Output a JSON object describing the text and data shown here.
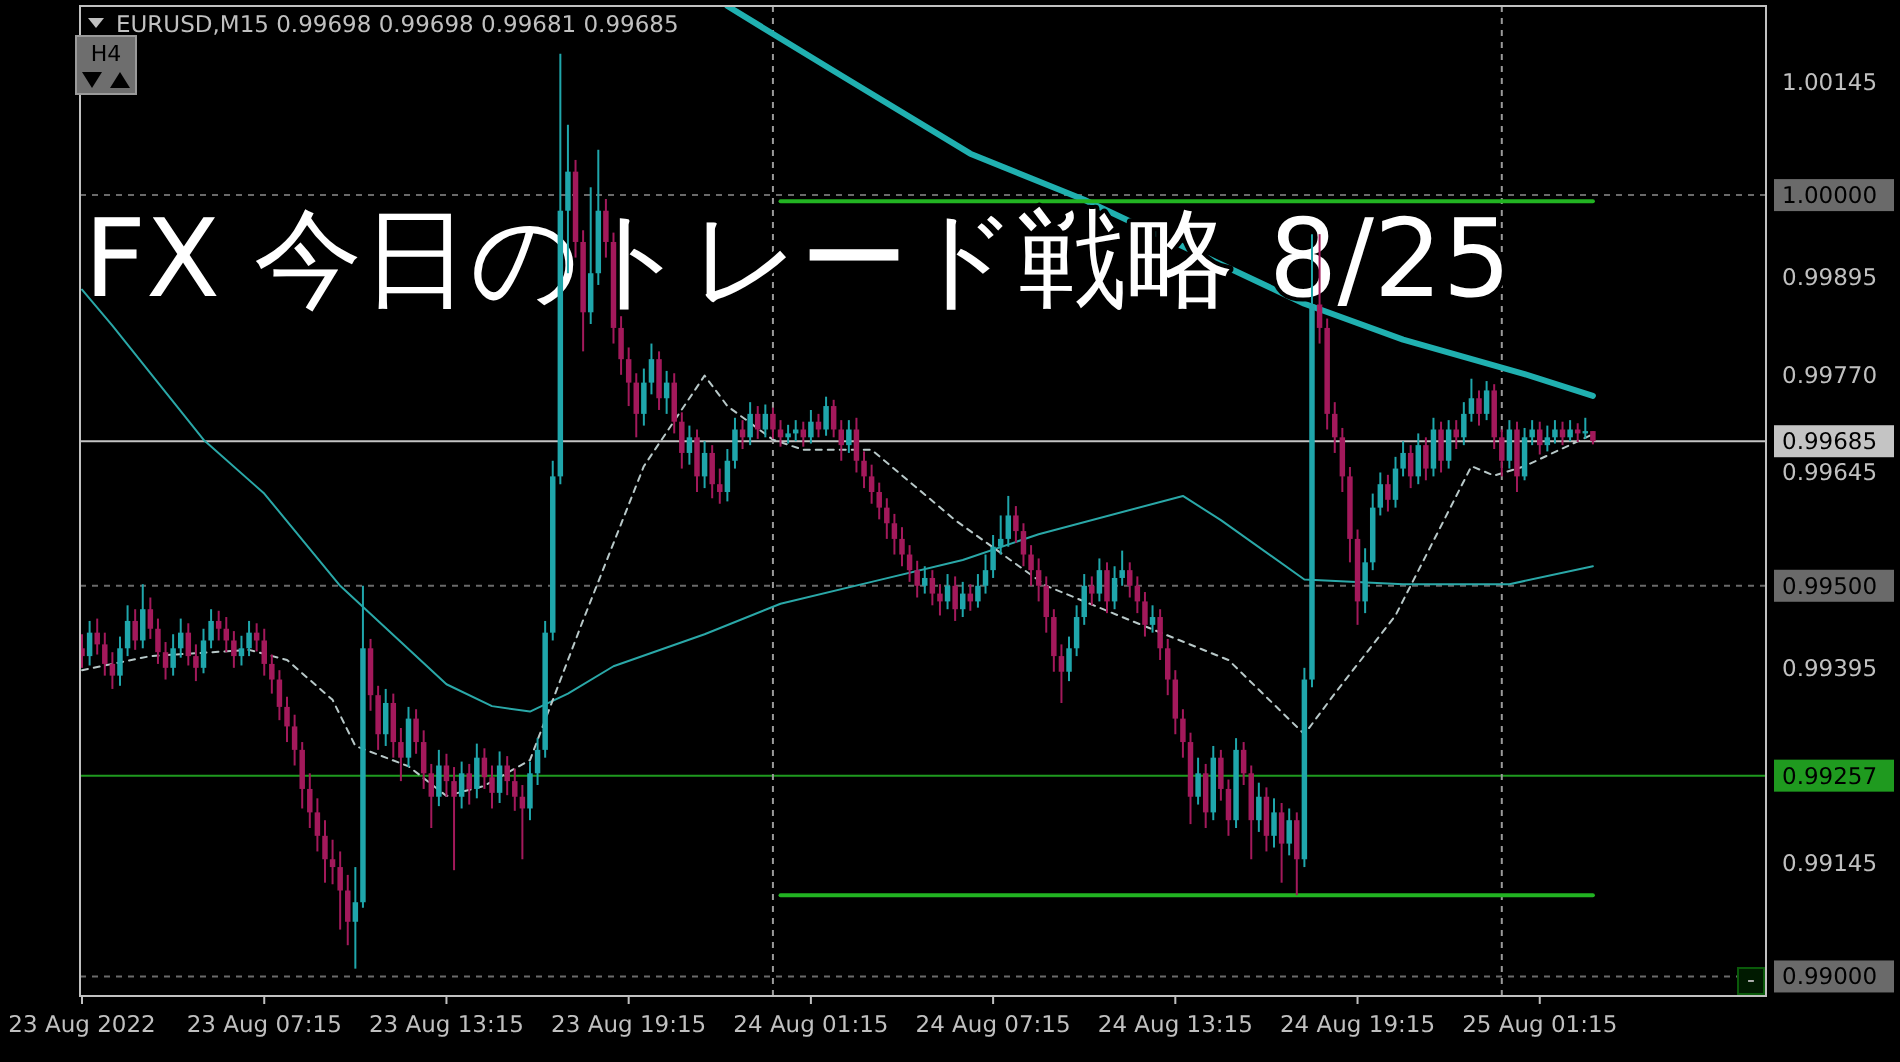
{
  "chart_data": {
    "type": "candlestick",
    "title": "EURUSD,M15  0.99698 0.99698 0.99681 0.99685",
    "annotations": [
      "FX 今日のトレード戦略 8/25",
      "H4",
      "-"
    ],
    "x": [
      "2022-08-23T01:15",
      "2022-08-23T01:30",
      "2022-08-23T01:45",
      "2022-08-23T02:00",
      "2022-08-23T02:15",
      "2022-08-23T02:30",
      "2022-08-23T02:45",
      "2022-08-23T03:00",
      "2022-08-23T03:15",
      "2022-08-23T03:30",
      "2022-08-23T03:45",
      "2022-08-23T04:00",
      "2022-08-23T04:15",
      "2022-08-23T04:30",
      "2022-08-23T04:45",
      "2022-08-23T05:00",
      "2022-08-23T05:15",
      "2022-08-23T05:30",
      "2022-08-23T05:45",
      "2022-08-23T06:00",
      "2022-08-23T06:15",
      "2022-08-23T06:30",
      "2022-08-23T06:45",
      "2022-08-23T07:00",
      "2022-08-23T07:15",
      "2022-08-23T07:30",
      "2022-08-23T07:45",
      "2022-08-23T08:00",
      "2022-08-23T08:15",
      "2022-08-23T08:30",
      "2022-08-23T08:45",
      "2022-08-23T09:00",
      "2022-08-23T09:15",
      "2022-08-23T09:30",
      "2022-08-23T09:45",
      "2022-08-23T10:00",
      "2022-08-23T10:15",
      "2022-08-23T10:30",
      "2022-08-23T10:45",
      "2022-08-23T11:00",
      "2022-08-23T11:15",
      "2022-08-23T11:30",
      "2022-08-23T11:45",
      "2022-08-23T12:00",
      "2022-08-23T12:15",
      "2022-08-23T12:30",
      "2022-08-23T12:45",
      "2022-08-23T13:00",
      "2022-08-23T13:15",
      "2022-08-23T13:30",
      "2022-08-23T13:45",
      "2022-08-23T14:00",
      "2022-08-23T14:15",
      "2022-08-23T14:30",
      "2022-08-23T14:45",
      "2022-08-23T15:00",
      "2022-08-23T15:15",
      "2022-08-23T15:30",
      "2022-08-23T15:45",
      "2022-08-23T16:00",
      "2022-08-23T16:15",
      "2022-08-23T16:30",
      "2022-08-23T16:45",
      "2022-08-23T17:00",
      "2022-08-23T17:15",
      "2022-08-23T17:30",
      "2022-08-23T17:45",
      "2022-08-23T18:00",
      "2022-08-23T18:15",
      "2022-08-23T18:30",
      "2022-08-23T18:45",
      "2022-08-23T19:00",
      "2022-08-23T19:15",
      "2022-08-23T19:30",
      "2022-08-23T19:45",
      "2022-08-23T20:00",
      "2022-08-23T20:15",
      "2022-08-23T20:30",
      "2022-08-23T20:45",
      "2022-08-23T21:00",
      "2022-08-23T21:15",
      "2022-08-23T21:30",
      "2022-08-23T21:45",
      "2022-08-23T22:00",
      "2022-08-23T22:15",
      "2022-08-23T22:30",
      "2022-08-23T22:45",
      "2022-08-23T23:00",
      "2022-08-23T23:15",
      "2022-08-23T23:30",
      "2022-08-23T23:45",
      "2022-08-24T00:00",
      "2022-08-24T00:15",
      "2022-08-24T00:30",
      "2022-08-24T00:45",
      "2022-08-24T01:00",
      "2022-08-24T01:15",
      "2022-08-24T01:30",
      "2022-08-24T01:45",
      "2022-08-24T02:00",
      "2022-08-24T02:15",
      "2022-08-24T02:30",
      "2022-08-24T02:45",
      "2022-08-24T03:00",
      "2022-08-24T03:15",
      "2022-08-24T03:30",
      "2022-08-24T03:45",
      "2022-08-24T04:00",
      "2022-08-24T04:15",
      "2022-08-24T04:30",
      "2022-08-24T04:45",
      "2022-08-24T05:00",
      "2022-08-24T05:15",
      "2022-08-24T05:30",
      "2022-08-24T05:45",
      "2022-08-24T06:00",
      "2022-08-24T06:15",
      "2022-08-24T06:30",
      "2022-08-24T06:45",
      "2022-08-24T07:00",
      "2022-08-24T07:15",
      "2022-08-24T07:30",
      "2022-08-24T07:45",
      "2022-08-24T08:00",
      "2022-08-24T08:15",
      "2022-08-24T08:30",
      "2022-08-24T08:45",
      "2022-08-24T09:00",
      "2022-08-24T09:15",
      "2022-08-24T09:30",
      "2022-08-24T09:45",
      "2022-08-24T10:00",
      "2022-08-24T10:15",
      "2022-08-24T10:30",
      "2022-08-24T10:45",
      "2022-08-24T11:00",
      "2022-08-24T11:15",
      "2022-08-24T11:30",
      "2022-08-24T11:45",
      "2022-08-24T12:00",
      "2022-08-24T12:15",
      "2022-08-24T12:30",
      "2022-08-24T12:45",
      "2022-08-24T13:00",
      "2022-08-24T13:15",
      "2022-08-24T13:30",
      "2022-08-24T13:45",
      "2022-08-24T14:00",
      "2022-08-24T14:15",
      "2022-08-24T14:30",
      "2022-08-24T14:45",
      "2022-08-24T15:00",
      "2022-08-24T15:15",
      "2022-08-24T15:30",
      "2022-08-24T15:45",
      "2022-08-24T16:00",
      "2022-08-24T16:15",
      "2022-08-24T16:30",
      "2022-08-24T16:45",
      "2022-08-24T17:00",
      "2022-08-24T17:15",
      "2022-08-24T17:30",
      "2022-08-24T17:45",
      "2022-08-24T18:00",
      "2022-08-24T18:15",
      "2022-08-24T18:30",
      "2022-08-24T18:45",
      "2022-08-24T19:00",
      "2022-08-24T19:15",
      "2022-08-24T19:30",
      "2022-08-24T19:45",
      "2022-08-24T20:00",
      "2022-08-24T20:15",
      "2022-08-24T20:30",
      "2022-08-24T20:45",
      "2022-08-24T21:00",
      "2022-08-24T21:15",
      "2022-08-24T21:30",
      "2022-08-24T21:45",
      "2022-08-24T22:00",
      "2022-08-24T22:15",
      "2022-08-24T22:30",
      "2022-08-24T22:45",
      "2022-08-24T23:00",
      "2022-08-24T23:15",
      "2022-08-24T23:30",
      "2022-08-24T23:45",
      "2022-08-25T00:00",
      "2022-08-25T00:15",
      "2022-08-25T00:30",
      "2022-08-25T00:45",
      "2022-08-25T01:00",
      "2022-08-25T01:15",
      "2022-08-25T01:30",
      "2022-08-25T01:45",
      "2022-08-25T02:00",
      "2022-08-25T02:15",
      "2022-08-25T02:30",
      "2022-08-25T02:45",
      "2022-08-25T03:00"
    ],
    "ohlc": [
      [
        0.9942,
        0.99438,
        0.99395,
        0.9941
      ],
      [
        0.9941,
        0.99455,
        0.99398,
        0.9944
      ],
      [
        0.9944,
        0.99458,
        0.99412,
        0.99425
      ],
      [
        0.99425,
        0.9944,
        0.99385,
        0.994
      ],
      [
        0.994,
        0.99415,
        0.99368,
        0.99385
      ],
      [
        0.99385,
        0.99435,
        0.99372,
        0.9942
      ],
      [
        0.9942,
        0.99475,
        0.9941,
        0.99455
      ],
      [
        0.99455,
        0.9947,
        0.99418,
        0.9943
      ],
      [
        0.9943,
        0.99502,
        0.9942,
        0.9947
      ],
      [
        0.9947,
        0.99485,
        0.99432,
        0.99445
      ],
      [
        0.99445,
        0.99458,
        0.994,
        0.99415
      ],
      [
        0.99415,
        0.99428,
        0.9938,
        0.99395
      ],
      [
        0.99395,
        0.99438,
        0.99385,
        0.9942
      ],
      [
        0.9942,
        0.99458,
        0.99408,
        0.9944
      ],
      [
        0.9944,
        0.99452,
        0.99398,
        0.9941
      ],
      [
        0.9941,
        0.99425,
        0.99378,
        0.99395
      ],
      [
        0.99395,
        0.99445,
        0.99388,
        0.9943
      ],
      [
        0.9943,
        0.9947,
        0.9942,
        0.99455
      ],
      [
        0.99455,
        0.99468,
        0.9943,
        0.99445
      ],
      [
        0.99445,
        0.9946,
        0.99415,
        0.9943
      ],
      [
        0.9943,
        0.99442,
        0.99395,
        0.9941
      ],
      [
        0.9941,
        0.99436,
        0.99398,
        0.9942
      ],
      [
        0.9942,
        0.99455,
        0.9941,
        0.9944
      ],
      [
        0.9944,
        0.99452,
        0.99416,
        0.9943
      ],
      [
        0.9943,
        0.99445,
        0.99385,
        0.994
      ],
      [
        0.994,
        0.99412,
        0.99362,
        0.9938
      ],
      [
        0.9938,
        0.99392,
        0.99328,
        0.99345
      ],
      [
        0.99345,
        0.99358,
        0.993,
        0.9932
      ],
      [
        0.9932,
        0.99335,
        0.9927,
        0.9929
      ],
      [
        0.9929,
        0.993,
        0.99215,
        0.9924
      ],
      [
        0.9924,
        0.9926,
        0.9919,
        0.9921
      ],
      [
        0.9921,
        0.99228,
        0.9916,
        0.9918
      ],
      [
        0.9918,
        0.992,
        0.9912,
        0.9915
      ],
      [
        0.9915,
        0.99175,
        0.99118,
        0.9914
      ],
      [
        0.9914,
        0.9916,
        0.9906,
        0.9911
      ],
      [
        0.9911,
        0.9913,
        0.9904,
        0.9907
      ],
      [
        0.9907,
        0.9914,
        0.9901,
        0.99095
      ],
      [
        0.99095,
        0.995,
        0.99088,
        0.9942
      ],
      [
        0.9942,
        0.99432,
        0.9934,
        0.9936
      ],
      [
        0.9936,
        0.99372,
        0.9929,
        0.9931
      ],
      [
        0.9931,
        0.99368,
        0.99295,
        0.9935
      ],
      [
        0.9935,
        0.99362,
        0.9928,
        0.993
      ],
      [
        0.993,
        0.99318,
        0.9925,
        0.9928
      ],
      [
        0.9928,
        0.99345,
        0.99268,
        0.9933
      ],
      [
        0.9933,
        0.99342,
        0.99285,
        0.993
      ],
      [
        0.993,
        0.99315,
        0.9924,
        0.9926
      ],
      [
        0.9926,
        0.99272,
        0.9919,
        0.9923
      ],
      [
        0.9923,
        0.9929,
        0.99218,
        0.9927
      ],
      [
        0.9927,
        0.99285,
        0.9923,
        0.9925
      ],
      [
        0.9925,
        0.99268,
        0.99136,
        0.9923
      ],
      [
        0.9923,
        0.99275,
        0.99215,
        0.9926
      ],
      [
        0.9926,
        0.99272,
        0.9922,
        0.9924
      ],
      [
        0.9924,
        0.99298,
        0.99228,
        0.9928
      ],
      [
        0.9928,
        0.99292,
        0.9924,
        0.99255
      ],
      [
        0.99255,
        0.9927,
        0.99215,
        0.99235
      ],
      [
        0.99235,
        0.99288,
        0.99222,
        0.9927
      ],
      [
        0.9927,
        0.99282,
        0.99232,
        0.9925
      ],
      [
        0.9925,
        0.99266,
        0.99212,
        0.9923
      ],
      [
        0.9923,
        0.99245,
        0.9915,
        0.99215
      ],
      [
        0.99215,
        0.99275,
        0.992,
        0.9926
      ],
      [
        0.9926,
        0.99305,
        0.99245,
        0.9929
      ],
      [
        0.9929,
        0.99455,
        0.9928,
        0.9944
      ],
      [
        0.9944,
        0.9966,
        0.9943,
        0.9964
      ],
      [
        0.9964,
        1.00181,
        0.9963,
        0.9998
      ],
      [
        0.9998,
        1.0009,
        0.999,
        1.0003
      ],
      [
        1.0003,
        1.00045,
        0.9992,
        0.9994
      ],
      [
        0.9994,
        0.99955,
        0.998,
        0.9985
      ],
      [
        0.9985,
        1.0001,
        0.99835,
        0.999
      ],
      [
        0.999,
        1.00058,
        0.99885,
        0.9998
      ],
      [
        0.9998,
        0.99995,
        0.9992,
        0.9994
      ],
      [
        0.9994,
        0.99952,
        0.9981,
        0.9983
      ],
      [
        0.9983,
        0.99845,
        0.9977,
        0.9979
      ],
      [
        0.9979,
        0.99805,
        0.9973,
        0.9976
      ],
      [
        0.9976,
        0.99772,
        0.9969,
        0.9972
      ],
      [
        0.9972,
        0.99778,
        0.99705,
        0.9976
      ],
      [
        0.9976,
        0.9981,
        0.99745,
        0.9979
      ],
      [
        0.9979,
        0.998,
        0.99725,
        0.9974
      ],
      [
        0.9974,
        0.99775,
        0.9972,
        0.9976
      ],
      [
        0.9976,
        0.99772,
        0.99695,
        0.9971
      ],
      [
        0.9971,
        0.99722,
        0.9965,
        0.9967
      ],
      [
        0.9967,
        0.99705,
        0.99655,
        0.9969
      ],
      [
        0.9969,
        0.997,
        0.9962,
        0.9964
      ],
      [
        0.9964,
        0.99685,
        0.99625,
        0.9967
      ],
      [
        0.9967,
        0.9968,
        0.99612,
        0.9963
      ],
      [
        0.9963,
        0.9965,
        0.99605,
        0.9962
      ],
      [
        0.9962,
        0.99675,
        0.99608,
        0.9966
      ],
      [
        0.9966,
        0.99715,
        0.9965,
        0.997
      ],
      [
        0.997,
        0.99712,
        0.99675,
        0.9969
      ],
      [
        0.9969,
        0.99735,
        0.9968,
        0.9972
      ],
      [
        0.9972,
        0.9973,
        0.99688,
        0.997
      ],
      [
        0.997,
        0.99732,
        0.9969,
        0.9972
      ],
      [
        0.9972,
        0.99728,
        0.99688,
        0.997
      ],
      [
        0.997,
        0.99712,
        0.99678,
        0.9969
      ],
      [
        0.9969,
        0.99706,
        0.99682,
        0.99695
      ],
      [
        0.99695,
        0.99712,
        0.99685,
        0.997
      ],
      [
        0.997,
        0.9971,
        0.99678,
        0.9969
      ],
      [
        0.9969,
        0.99725,
        0.99682,
        0.9971
      ],
      [
        0.9971,
        0.9972,
        0.9969,
        0.997
      ],
      [
        0.997,
        0.99742,
        0.99692,
        0.9973
      ],
      [
        0.9973,
        0.99738,
        0.9969,
        0.997
      ],
      [
        0.997,
        0.99712,
        0.9966,
        0.9968
      ],
      [
        0.9968,
        0.99712,
        0.9967,
        0.997
      ],
      [
        0.997,
        0.99715,
        0.99645,
        0.9966
      ],
      [
        0.9966,
        0.99672,
        0.99625,
        0.9964
      ],
      [
        0.9964,
        0.99655,
        0.99605,
        0.9962
      ],
      [
        0.9962,
        0.99632,
        0.99585,
        0.996
      ],
      [
        0.996,
        0.99612,
        0.9956,
        0.9958
      ],
      [
        0.9958,
        0.99592,
        0.9954,
        0.9956
      ],
      [
        0.9956,
        0.99575,
        0.99525,
        0.9954
      ],
      [
        0.9954,
        0.99552,
        0.99505,
        0.9952
      ],
      [
        0.9952,
        0.99532,
        0.99485,
        0.995
      ],
      [
        0.995,
        0.99525,
        0.9949,
        0.9951
      ],
      [
        0.9951,
        0.9952,
        0.99475,
        0.9949
      ],
      [
        0.9949,
        0.99502,
        0.99462,
        0.9948
      ],
      [
        0.9948,
        0.99515,
        0.9947,
        0.995
      ],
      [
        0.995,
        0.99512,
        0.99455,
        0.9947
      ],
      [
        0.9947,
        0.99505,
        0.9946,
        0.9949
      ],
      [
        0.9949,
        0.99502,
        0.99468,
        0.9948
      ],
      [
        0.9948,
        0.99515,
        0.99472,
        0.995
      ],
      [
        0.995,
        0.9954,
        0.9949,
        0.9952
      ],
      [
        0.9952,
        0.99565,
        0.9951,
        0.9955
      ],
      [
        0.9955,
        0.9959,
        0.9954,
        0.9956
      ],
      [
        0.9956,
        0.99615,
        0.9955,
        0.9959
      ],
      [
        0.9959,
        0.99602,
        0.99555,
        0.9957
      ],
      [
        0.9957,
        0.9958,
        0.99525,
        0.9954
      ],
      [
        0.9954,
        0.99552,
        0.995,
        0.9952
      ],
      [
        0.9952,
        0.99535,
        0.9948,
        0.995
      ],
      [
        0.995,
        0.99512,
        0.9944,
        0.9946
      ],
      [
        0.9946,
        0.9947,
        0.9939,
        0.9941
      ],
      [
        0.9941,
        0.99425,
        0.9935,
        0.9939
      ],
      [
        0.9939,
        0.99435,
        0.99378,
        0.9942
      ],
      [
        0.9942,
        0.99475,
        0.9941,
        0.9946
      ],
      [
        0.9946,
        0.99515,
        0.9945,
        0.995
      ],
      [
        0.995,
        0.99512,
        0.99475,
        0.9949
      ],
      [
        0.9949,
        0.99535,
        0.9948,
        0.9952
      ],
      [
        0.9952,
        0.9953,
        0.99465,
        0.9948
      ],
      [
        0.9948,
        0.99525,
        0.9947,
        0.9951
      ],
      [
        0.9951,
        0.99545,
        0.995,
        0.9952
      ],
      [
        0.9952,
        0.9953,
        0.99485,
        0.995
      ],
      [
        0.995,
        0.99512,
        0.99465,
        0.9948
      ],
      [
        0.9948,
        0.99492,
        0.99435,
        0.9945
      ],
      [
        0.9945,
        0.99475,
        0.9944,
        0.9946
      ],
      [
        0.9946,
        0.9947,
        0.99405,
        0.9942
      ],
      [
        0.9942,
        0.99432,
        0.9936,
        0.9938
      ],
      [
        0.9938,
        0.99392,
        0.9931,
        0.9933
      ],
      [
        0.9933,
        0.99342,
        0.9928,
        0.993
      ],
      [
        0.993,
        0.99312,
        0.99195,
        0.9923
      ],
      [
        0.9923,
        0.9928,
        0.9922,
        0.9926
      ],
      [
        0.9926,
        0.99272,
        0.9919,
        0.9921
      ],
      [
        0.9921,
        0.99295,
        0.992,
        0.9928
      ],
      [
        0.9928,
        0.9929,
        0.99225,
        0.9924
      ],
      [
        0.9924,
        0.99252,
        0.9918,
        0.992
      ],
      [
        0.992,
        0.99305,
        0.9919,
        0.9929
      ],
      [
        0.9929,
        0.993,
        0.99245,
        0.9926
      ],
      [
        0.9926,
        0.9927,
        0.9915,
        0.992
      ],
      [
        0.992,
        0.99248,
        0.99185,
        0.9923
      ],
      [
        0.9923,
        0.99242,
        0.9916,
        0.9918
      ],
      [
        0.9918,
        0.99228,
        0.99165,
        0.9921
      ],
      [
        0.9921,
        0.99222,
        0.9912,
        0.9917
      ],
      [
        0.9917,
        0.99215,
        0.99155,
        0.992
      ],
      [
        0.992,
        0.9921,
        0.99104,
        0.9915
      ],
      [
        0.9915,
        0.99395,
        0.9914,
        0.9938
      ],
      [
        0.9938,
        0.9995,
        0.9937,
        0.9986
      ],
      [
        0.9986,
        0.9995,
        0.9981,
        0.9983
      ],
      [
        0.9983,
        0.99842,
        0.997,
        0.9972
      ],
      [
        0.9972,
        0.99735,
        0.9967,
        0.9969
      ],
      [
        0.9969,
        0.99702,
        0.9962,
        0.9964
      ],
      [
        0.9964,
        0.99652,
        0.9953,
        0.9956
      ],
      [
        0.9956,
        0.99572,
        0.9945,
        0.9948
      ],
      [
        0.9948,
        0.99548,
        0.99465,
        0.9953
      ],
      [
        0.9953,
        0.99618,
        0.9952,
        0.996
      ],
      [
        0.996,
        0.99645,
        0.9959,
        0.9963
      ],
      [
        0.9963,
        0.99642,
        0.99595,
        0.9961
      ],
      [
        0.9961,
        0.99665,
        0.996,
        0.9965
      ],
      [
        0.9965,
        0.99685,
        0.9964,
        0.9967
      ],
      [
        0.9967,
        0.9968,
        0.99625,
        0.9964
      ],
      [
        0.9964,
        0.99695,
        0.9963,
        0.9968
      ],
      [
        0.9968,
        0.9969,
        0.99635,
        0.9965
      ],
      [
        0.9965,
        0.99715,
        0.9964,
        0.997
      ],
      [
        0.997,
        0.9971,
        0.99645,
        0.9966
      ],
      [
        0.9966,
        0.99712,
        0.9965,
        0.997
      ],
      [
        0.997,
        0.99712,
        0.99675,
        0.9969
      ],
      [
        0.9969,
        0.99735,
        0.9968,
        0.9972
      ],
      [
        0.9972,
        0.99765,
        0.9971,
        0.9974
      ],
      [
        0.9974,
        0.9975,
        0.99705,
        0.9972
      ],
      [
        0.9972,
        0.99762,
        0.99712,
        0.9975
      ],
      [
        0.9975,
        0.99758,
        0.99675,
        0.9969
      ],
      [
        0.9969,
        0.997,
        0.9964,
        0.9966
      ],
      [
        0.9966,
        0.99712,
        0.9965,
        0.997
      ],
      [
        0.997,
        0.9971,
        0.9962,
        0.9964
      ],
      [
        0.9964,
        0.99702,
        0.99635,
        0.9969
      ],
      [
        0.9969,
        0.99712,
        0.9968,
        0.997
      ],
      [
        0.997,
        0.9971,
        0.99668,
        0.9968
      ],
      [
        0.9968,
        0.99705,
        0.99672,
        0.9969
      ],
      [
        0.9969,
        0.99712,
        0.99682,
        0.997
      ],
      [
        0.997,
        0.9971,
        0.9968,
        0.9969
      ],
      [
        0.9969,
        0.99712,
        0.99685,
        0.997
      ],
      [
        0.997,
        0.99708,
        0.99684,
        0.99695
      ],
      [
        0.99695,
        0.99715,
        0.99688,
        0.99698
      ],
      [
        0.99698,
        0.99698,
        0.99681,
        0.99685
      ]
    ],
    "colors": [
      "#a3195b",
      "#1fa6ab",
      "#a3195b",
      "#a3195b",
      "#a3195b",
      "#1fa6ab",
      "#1fa6ab",
      "#a3195b",
      "#1fa6ab",
      "#a3195b",
      "#a3195b",
      "#a3195b",
      "#1fa6ab",
      "#1fa6ab",
      "#a3195b",
      "#a3195b",
      "#1fa6ab",
      "#1fa6ab",
      "#a3195b",
      "#a3195b",
      "#a3195b",
      "#1fa6ab",
      "#1fa6ab",
      "#a3195b",
      "#a3195b",
      "#a3195b",
      "#a3195b",
      "#a3195b",
      "#a3195b",
      "#a3195b",
      "#a3195b",
      "#a3195b",
      "#a3195b",
      "#a3195b",
      "#a3195b",
      "#a3195b",
      "#1fa6ab",
      "#1fa6ab",
      "#a3195b",
      "#a3195b",
      "#1fa6ab",
      "#a3195b",
      "#a3195b",
      "#1fa6ab",
      "#a3195b",
      "#a3195b",
      "#a3195b",
      "#1fa6ab",
      "#a3195b",
      "#a3195b",
      "#1fa6ab",
      "#a3195b",
      "#1fa6ab",
      "#a3195b",
      "#a3195b",
      "#1fa6ab",
      "#a3195b",
      "#a3195b",
      "#a3195b",
      "#1fa6ab",
      "#1fa6ab",
      "#1fa6ab",
      "#1fa6ab",
      "#1fa6ab",
      "#1fa6ab",
      "#a3195b",
      "#a3195b",
      "#1fa6ab",
      "#1fa6ab",
      "#a3195b",
      "#a3195b",
      "#a3195b",
      "#a3195b",
      "#a3195b",
      "#1fa6ab",
      "#1fa6ab",
      "#a3195b",
      "#1fa6ab",
      "#a3195b",
      "#a3195b",
      "#1fa6ab",
      "#a3195b",
      "#1fa6ab",
      "#a3195b",
      "#a3195b",
      "#1fa6ab",
      "#1fa6ab",
      "#a3195b",
      "#1fa6ab",
      "#a3195b",
      "#1fa6ab",
      "#a3195b",
      "#a3195b",
      "#1fa6ab",
      "#1fa6ab",
      "#a3195b",
      "#1fa6ab",
      "#a3195b",
      "#1fa6ab",
      "#a3195b",
      "#a3195b",
      "#1fa6ab",
      "#a3195b",
      "#a3195b",
      "#a3195b",
      "#a3195b",
      "#a3195b",
      "#a3195b",
      "#a3195b",
      "#a3195b",
      "#a3195b",
      "#1fa6ab",
      "#a3195b",
      "#a3195b",
      "#1fa6ab",
      "#a3195b",
      "#1fa6ab",
      "#a3195b",
      "#1fa6ab",
      "#1fa6ab",
      "#1fa6ab",
      "#1fa6ab",
      "#1fa6ab",
      "#a3195b",
      "#a3195b",
      "#a3195b",
      "#a3195b",
      "#a3195b",
      "#a3195b",
      "#a3195b",
      "#1fa6ab",
      "#1fa6ab",
      "#1fa6ab",
      "#a3195b",
      "#1fa6ab",
      "#a3195b",
      "#1fa6ab",
      "#1fa6ab",
      "#a3195b",
      "#a3195b",
      "#a3195b",
      "#1fa6ab",
      "#a3195b",
      "#a3195b",
      "#a3195b",
      "#a3195b",
      "#a3195b",
      "#1fa6ab",
      "#a3195b",
      "#1fa6ab",
      "#a3195b",
      "#a3195b",
      "#1fa6ab",
      "#a3195b",
      "#a3195b",
      "#1fa6ab",
      "#a3195b",
      "#1fa6ab",
      "#a3195b",
      "#1fa6ab",
      "#a3195b",
      "#1fa6ab",
      "#1fa6ab",
      "#a3195b",
      "#a3195b",
      "#a3195b",
      "#a3195b",
      "#a3195b",
      "#a3195b",
      "#1fa6ab",
      "#1fa6ab",
      "#1fa6ab",
      "#a3195b",
      "#1fa6ab",
      "#1fa6ab",
      "#a3195b",
      "#1fa6ab",
      "#a3195b",
      "#1fa6ab",
      "#a3195b",
      "#1fa6ab",
      "#a3195b",
      "#1fa6ab",
      "#1fa6ab",
      "#a3195b",
      "#1fa6ab",
      "#a3195b",
      "#a3195b",
      "#1fa6ab",
      "#a3195b",
      "#1fa6ab",
      "#1fa6ab",
      "#a3195b",
      "#1fa6ab",
      "#1fa6ab",
      "#a3195b",
      "#1fa6ab",
      "#a3195b",
      "#1fa6ab",
      "#a3195b"
    ],
    "series": [
      {
        "type": "line",
        "color": "#20b0b0",
        "line_style": "solid",
        "x": [
          "2022-08-23T22:30",
          "2022-08-24T02:15",
          "2022-08-24T06:30",
          "2022-08-24T10:15",
          "2022-08-24T17:30",
          "2022-08-24T20:45",
          "2022-08-25T00:45",
          "2022-08-25T03:00"
        ],
        "values": [
          1.00242,
          1.00153,
          1.00053,
          0.99994,
          0.99861,
          0.99815,
          0.99771,
          0.99743
        ]
      },
      {
        "type": "line",
        "color": "#2aa8a8",
        "line_style": "solid",
        "x": [
          "2022-08-23T01:15",
          "2022-08-23T02:15",
          "2022-08-23T05:15",
          "2022-08-23T07:15",
          "2022-08-23T09:45",
          "2022-08-23T13:15",
          "2022-08-23T14:45",
          "2022-08-23T16:00",
          "2022-08-23T17:15",
          "2022-08-23T18:45",
          "2022-08-23T21:45",
          "2022-08-24T00:15",
          "2022-08-24T03:15",
          "2022-08-24T06:15",
          "2022-08-24T08:45",
          "2022-08-24T13:30",
          "2022-08-24T14:45",
          "2022-08-24T17:30",
          "2022-08-24T20:45",
          "2022-08-24T22:30",
          "2022-08-25T00:15",
          "2022-08-25T03:00"
        ],
        "values": [
          0.99879,
          0.99833,
          0.99687,
          0.99618,
          0.995,
          0.99374,
          0.99346,
          0.99339,
          0.99362,
          0.99397,
          0.99438,
          0.99477,
          0.99505,
          0.99533,
          0.99566,
          0.99615,
          0.99584,
          0.99508,
          0.99502,
          0.99502,
          0.99502,
          0.99525
        ]
      },
      {
        "type": "line",
        "color": "#b8c8c8",
        "line_style": "dashed",
        "x": [
          "2022-08-23T01:15",
          "2022-08-23T03:30",
          "2022-08-23T06:45",
          "2022-08-23T08:00",
          "2022-08-23T09:30",
          "2022-08-23T10:15",
          "2022-08-23T12:00",
          "2022-08-23T13:15",
          "2022-08-23T14:30",
          "2022-08-23T16:00",
          "2022-08-23T17:45",
          "2022-08-23T19:45",
          "2022-08-23T21:45",
          "2022-08-23T22:30",
          "2022-08-24T00:00",
          "2022-08-24T01:00",
          "2022-08-24T03:15",
          "2022-08-24T06:00",
          "2022-08-24T09:00",
          "2022-08-24T11:45",
          "2022-08-24T15:00",
          "2022-08-24T17:30",
          "2022-08-24T18:30",
          "2022-08-24T20:30",
          "2022-08-24T23:00",
          "2022-08-24T23:45",
          "2022-08-25T00:45",
          "2022-08-25T03:00"
        ],
        "values": [
          0.99392,
          0.9941,
          0.99418,
          0.99405,
          0.99354,
          0.99295,
          0.99269,
          0.99231,
          0.99244,
          0.99277,
          0.99456,
          0.99653,
          0.99769,
          0.9973,
          0.99687,
          0.99674,
          0.99674,
          0.99584,
          0.995,
          0.99456,
          0.99405,
          0.9931,
          0.99362,
          0.99462,
          0.99653,
          0.99641,
          0.99653,
          0.99694
        ]
      },
      {
        "type": "line",
        "color": "#22b322",
        "line_style": "solid",
        "x": [
          "2022-08-24T00:15",
          "2022-08-25T03:00"
        ],
        "values": [
          0.99992,
          0.99992
        ]
      },
      {
        "type": "line",
        "color": "#22b322",
        "line_style": "solid",
        "x": [
          "2022-08-24T00:15",
          "2022-08-25T03:00"
        ],
        "values": [
          0.99104,
          0.99104
        ]
      }
    ],
    "xlim": [
      "2022-08-23T01:11",
      "2022-08-25T08:42"
    ],
    "ylim": [
      0.98975,
      1.00242
    ],
    "xticks": [
      {
        "value": "2022-08-23T01:15",
        "label": "23 Aug 2022"
      },
      {
        "value": "2022-08-23T07:15",
        "label": "23 Aug 07:15"
      },
      {
        "value": "2022-08-23T13:15",
        "label": "23 Aug 13:15"
      },
      {
        "value": "2022-08-23T19:15",
        "label": "23 Aug 19:15"
      },
      {
        "value": "2022-08-24T01:15",
        "label": "24 Aug 01:15"
      },
      {
        "value": "2022-08-24T07:15",
        "label": "24 Aug 07:15"
      },
      {
        "value": "2022-08-24T13:15",
        "label": "24 Aug 13:15"
      },
      {
        "value": "2022-08-24T19:15",
        "label": "24 Aug 19:15"
      },
      {
        "value": "2022-08-25T01:15",
        "label": "25 Aug 01:15"
      }
    ],
    "yticks": [
      {
        "value": 1.00145,
        "label": "1.00145"
      },
      {
        "value": 0.99895,
        "label": "0.99895"
      },
      {
        "value": 0.9977,
        "label": "0.99770"
      },
      {
        "value": 0.99645,
        "label": "0.99645"
      },
      {
        "value": 0.99395,
        "label": "0.99395"
      },
      {
        "value": 0.99145,
        "label": "0.99145"
      }
    ],
    "ref_lines": [
      {
        "axis": "y",
        "value": 1.0,
        "label": "1.00000",
        "color": "#6a6a6a",
        "line_style": "dashed"
      },
      {
        "axis": "y",
        "value": 0.99685,
        "label": "0.99685",
        "color": "#c4c4c4",
        "line_style": "solid"
      },
      {
        "axis": "y",
        "value": 0.995,
        "label": "0.99500",
        "color": "#6a6a6a",
        "line_style": "dashed"
      },
      {
        "axis": "y",
        "value": 0.99257,
        "label": "0.99257",
        "color": "#1f9a1f",
        "line_style": "solid"
      },
      {
        "axis": "y",
        "value": 0.99,
        "label": "0.99000",
        "color": "#6a6a6a",
        "line_style": "dashed"
      },
      {
        "axis": "x",
        "value": "2022-08-24T00:00",
        "color": "#9a9a9a",
        "line_style": "dashed"
      },
      {
        "axis": "x",
        "value": "2022-08-25T00:00",
        "color": "#9a9a9a",
        "line_style": "dashed"
      }
    ]
  }
}
